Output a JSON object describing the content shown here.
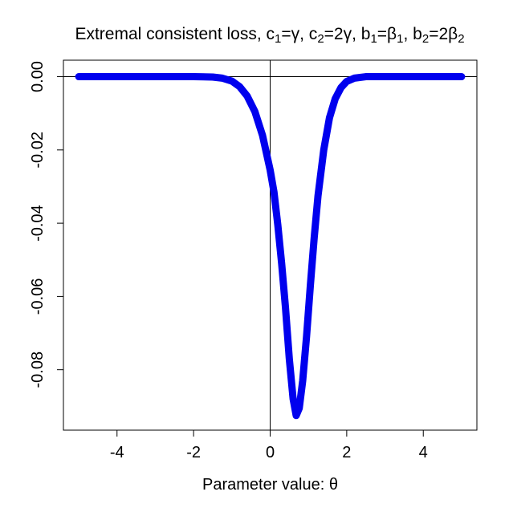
{
  "chart_data": {
    "type": "line",
    "title": {
      "parts": [
        {
          "text": "Extremal consistent loss, c"
        },
        {
          "text": "1",
          "sub": true
        },
        {
          "text": "=γ, c"
        },
        {
          "text": "2",
          "sub": true
        },
        {
          "text": "=2γ, b"
        },
        {
          "text": "1",
          "sub": true
        },
        {
          "text": "=β"
        },
        {
          "text": "1",
          "sub": true
        },
        {
          "text": ", b"
        },
        {
          "text": "2",
          "sub": true
        },
        {
          "text": "=2β"
        },
        {
          "text": "2",
          "sub": true
        }
      ]
    },
    "xlabel": "Parameter value: θ",
    "ylabel": "",
    "xlim": [
      -5.4,
      5.4
    ],
    "ylim": [
      -0.0965,
      0.0045
    ],
    "x_ticks": [
      -4,
      -2,
      0,
      2,
      4
    ],
    "x_tick_labels": [
      "-4",
      "-2",
      "0",
      "2",
      "4"
    ],
    "y_ticks": [
      0,
      -0.02,
      -0.04,
      -0.06,
      -0.08
    ],
    "y_tick_labels": [
      "0.00",
      "-0.02",
      "-0.04",
      "-0.06",
      "-0.08"
    ],
    "reference_lines": {
      "horizontal": 0,
      "vertical": 0
    },
    "grid": false,
    "legend": "none",
    "series": [
      {
        "color": "#0000ee",
        "points": [
          [
            -5.0,
            0.0
          ],
          [
            -4.0,
            0.0
          ],
          [
            -3.0,
            0.0
          ],
          [
            -2.0,
            0.0
          ],
          [
            -1.5,
            -0.0001
          ],
          [
            -1.25,
            -0.0004
          ],
          [
            -1.0,
            -0.0012
          ],
          [
            -0.8,
            -0.0027
          ],
          [
            -0.6,
            -0.0053
          ],
          [
            -0.4,
            -0.0095
          ],
          [
            -0.2,
            -0.016
          ],
          [
            0.0,
            -0.0255
          ],
          [
            0.1,
            -0.0315
          ],
          [
            0.2,
            -0.0405
          ],
          [
            0.3,
            -0.051
          ],
          [
            0.4,
            -0.063
          ],
          [
            0.5,
            -0.077
          ],
          [
            0.6,
            -0.088
          ],
          [
            0.68,
            -0.0925
          ],
          [
            0.76,
            -0.0905
          ],
          [
            0.85,
            -0.083
          ],
          [
            0.95,
            -0.071
          ],
          [
            1.05,
            -0.057
          ],
          [
            1.15,
            -0.044
          ],
          [
            1.25,
            -0.0325
          ],
          [
            1.4,
            -0.02
          ],
          [
            1.55,
            -0.0112
          ],
          [
            1.7,
            -0.006
          ],
          [
            1.85,
            -0.003
          ],
          [
            2.0,
            -0.0013
          ],
          [
            2.2,
            -0.0004
          ],
          [
            2.5,
            0.0
          ],
          [
            3.0,
            0.0
          ],
          [
            4.0,
            0.0
          ],
          [
            5.0,
            0.0
          ]
        ]
      }
    ]
  }
}
